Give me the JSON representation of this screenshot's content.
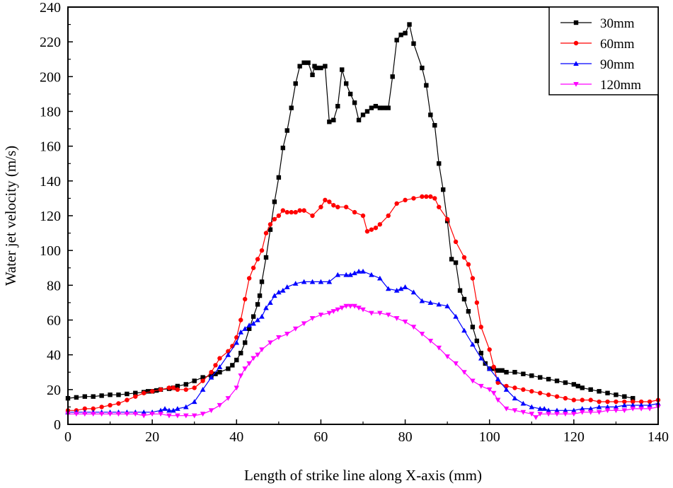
{
  "chart_data": {
    "type": "line",
    "title": "",
    "xlabel": "Length of strike line along X-axis  (mm)",
    "ylabel": "Water jet velocity (m/s)",
    "xlim": [
      0,
      140
    ],
    "ylim": [
      0,
      240
    ],
    "xticks": [
      0,
      20,
      40,
      60,
      80,
      100,
      120,
      140
    ],
    "yticks": [
      0,
      20,
      40,
      60,
      80,
      100,
      120,
      140,
      160,
      180,
      200,
      220,
      240
    ],
    "grid": false,
    "legend_position": "top-right",
    "series": [
      {
        "name": "30mm",
        "color": "#000000",
        "marker": "square",
        "x": [
          0,
          2,
          4,
          6,
          8,
          10,
          12,
          14,
          16,
          18,
          19,
          20,
          21,
          22,
          24,
          25,
          26,
          28,
          30,
          32,
          34,
          35,
          36,
          38,
          39,
          40,
          41,
          42,
          43,
          44,
          45,
          45.5,
          46,
          47,
          48,
          49,
          50,
          51,
          52,
          53,
          54,
          55,
          56,
          57,
          58,
          58.5,
          59,
          60,
          61,
          62,
          63,
          64,
          65,
          66,
          67,
          68,
          69,
          70,
          71,
          72,
          73,
          74,
          75,
          76,
          77,
          78,
          79,
          80,
          81,
          82,
          84,
          85,
          86,
          87,
          88,
          89,
          90,
          91,
          92,
          93,
          94,
          95,
          96,
          97,
          98,
          99,
          100,
          101,
          102,
          103,
          104,
          106,
          108,
          110,
          112,
          114,
          116,
          118,
          120,
          121,
          122,
          124,
          126,
          128,
          130,
          132,
          134
        ],
        "y": [
          15,
          15.5,
          16,
          16,
          16.5,
          17,
          17,
          17.5,
          18,
          18.5,
          19,
          19,
          19.5,
          20,
          20.5,
          21,
          22,
          23,
          25,
          27,
          28,
          29,
          30,
          32,
          34,
          37,
          41,
          47,
          55,
          62,
          69,
          74,
          82,
          96,
          112,
          128,
          142,
          159,
          169,
          182,
          196,
          206,
          208,
          208,
          201,
          206,
          205,
          205,
          206,
          174,
          175,
          183,
          204,
          196,
          190,
          185,
          175,
          178,
          180,
          182,
          183,
          182,
          182,
          182,
          200,
          221,
          224,
          225,
          230,
          219,
          205,
          195,
          178,
          172,
          150,
          135,
          117,
          95,
          93,
          77,
          72,
          65,
          56,
          48,
          41,
          35,
          32,
          32,
          31,
          31,
          30,
          30,
          29,
          28,
          27,
          26,
          25,
          24,
          23,
          22,
          21,
          20,
          19,
          18,
          17,
          16,
          15
        ]
      },
      {
        "name": "60mm",
        "color": "#ff0000",
        "marker": "circle",
        "x": [
          0,
          2,
          4,
          6,
          8,
          10,
          12,
          14,
          16,
          18,
          20,
          22,
          24,
          25,
          26,
          28,
          30,
          32,
          34,
          35,
          36,
          38,
          39,
          40,
          41,
          42,
          43,
          44,
          45,
          46,
          47,
          48,
          49,
          50,
          51,
          52,
          53,
          54,
          55,
          56,
          58,
          60,
          61,
          62,
          63,
          64,
          66,
          68,
          70,
          71,
          72,
          73,
          74,
          76,
          78,
          80,
          82,
          84,
          85,
          86,
          87,
          88,
          90,
          92,
          94,
          95,
          96,
          97,
          98,
          100,
          101,
          102,
          104,
          106,
          108,
          110,
          112,
          114,
          116,
          118,
          120,
          122,
          124,
          126,
          128,
          130,
          132,
          134,
          136,
          138,
          140
        ],
        "y": [
          8,
          8,
          9,
          9,
          10,
          11,
          12,
          14,
          16,
          18,
          19,
          20,
          21,
          21,
          20,
          20,
          21,
          25,
          30,
          34,
          38,
          42,
          45,
          50,
          60,
          72,
          84,
          90,
          95,
          100,
          110,
          115,
          118,
          120,
          123,
          122,
          122,
          122,
          123,
          123,
          120,
          125,
          129,
          128,
          126,
          125,
          125,
          122,
          120,
          111,
          112,
          113,
          115,
          120,
          127,
          129,
          130,
          131,
          131,
          131,
          130,
          125,
          118,
          105,
          96,
          92,
          84,
          70,
          56,
          43,
          33,
          24,
          22,
          21,
          20,
          19,
          18,
          17,
          16,
          15,
          14,
          14,
          14,
          13,
          13,
          13,
          13,
          13,
          13,
          13,
          14
        ]
      },
      {
        "name": "90mm",
        "color": "#0000ff",
        "marker": "triangle-up",
        "x": [
          0,
          2,
          4,
          6,
          8,
          10,
          12,
          14,
          16,
          18,
          20,
          22,
          23,
          24,
          25,
          26,
          28,
          30,
          32,
          34,
          36,
          38,
          40,
          41,
          42,
          43,
          44,
          45,
          46,
          47,
          48,
          49,
          50,
          51,
          52,
          54,
          56,
          58,
          60,
          62,
          64,
          66,
          67,
          68,
          69,
          70,
          72,
          74,
          76,
          78,
          79,
          80,
          82,
          84,
          86,
          88,
          90,
          92,
          94,
          96,
          98,
          100,
          102,
          104,
          106,
          108,
          110,
          112,
          113,
          114,
          116,
          118,
          120,
          122,
          124,
          126,
          128,
          130,
          132,
          134,
          136,
          138,
          140
        ],
        "y": [
          7,
          7,
          7,
          7,
          7,
          7,
          7,
          7,
          7,
          7,
          7,
          8,
          9,
          8,
          8,
          9,
          10,
          13,
          20,
          27,
          33,
          40,
          47,
          53,
          55,
          57,
          58,
          60,
          62,
          67,
          70,
          74,
          76,
          77,
          79,
          81,
          82,
          82,
          82,
          82,
          86,
          86,
          86,
          87,
          88,
          88,
          86,
          84,
          78,
          77,
          78,
          79,
          76,
          71,
          70,
          69,
          68,
          62,
          54,
          46,
          38,
          32,
          26,
          20,
          15,
          12,
          10,
          9,
          9,
          8,
          8,
          8,
          8,
          9,
          9,
          10,
          10,
          10,
          11,
          11,
          11,
          11,
          12
        ]
      },
      {
        "name": "120mm",
        "color": "#ff00ff",
        "marker": "triangle-down",
        "x": [
          0,
          2,
          4,
          6,
          8,
          10,
          12,
          14,
          16,
          18,
          20,
          22,
          24,
          26,
          28,
          30,
          32,
          34,
          36,
          38,
          40,
          41,
          42,
          43,
          44,
          45,
          46,
          48,
          50,
          52,
          54,
          56,
          58,
          60,
          62,
          63,
          64,
          65,
          66,
          67,
          68,
          69,
          70,
          72,
          74,
          76,
          78,
          80,
          82,
          84,
          86,
          88,
          90,
          92,
          94,
          96,
          98,
          100,
          101,
          102,
          104,
          106,
          108,
          110,
          111,
          112,
          114,
          116,
          118,
          120,
          122,
          124,
          126,
          128,
          130,
          132,
          134,
          136,
          138,
          140
        ],
        "y": [
          6,
          6,
          6,
          6,
          6,
          6,
          6,
          6,
          6,
          5,
          6,
          6,
          5,
          5,
          5,
          5,
          6,
          8,
          11,
          15,
          21,
          28,
          32,
          35,
          38,
          40,
          43,
          47,
          50,
          52,
          55,
          58,
          61,
          63,
          64,
          65,
          66,
          67,
          68,
          68,
          68,
          67,
          66,
          64,
          64,
          63,
          61,
          59,
          56,
          52,
          48,
          44,
          39,
          35,
          30,
          25,
          22,
          20,
          18,
          14,
          9,
          8,
          7,
          6,
          4,
          6,
          6,
          6,
          6,
          6,
          7,
          7,
          7,
          8,
          8,
          8,
          9,
          9,
          9,
          10
        ]
      }
    ]
  }
}
